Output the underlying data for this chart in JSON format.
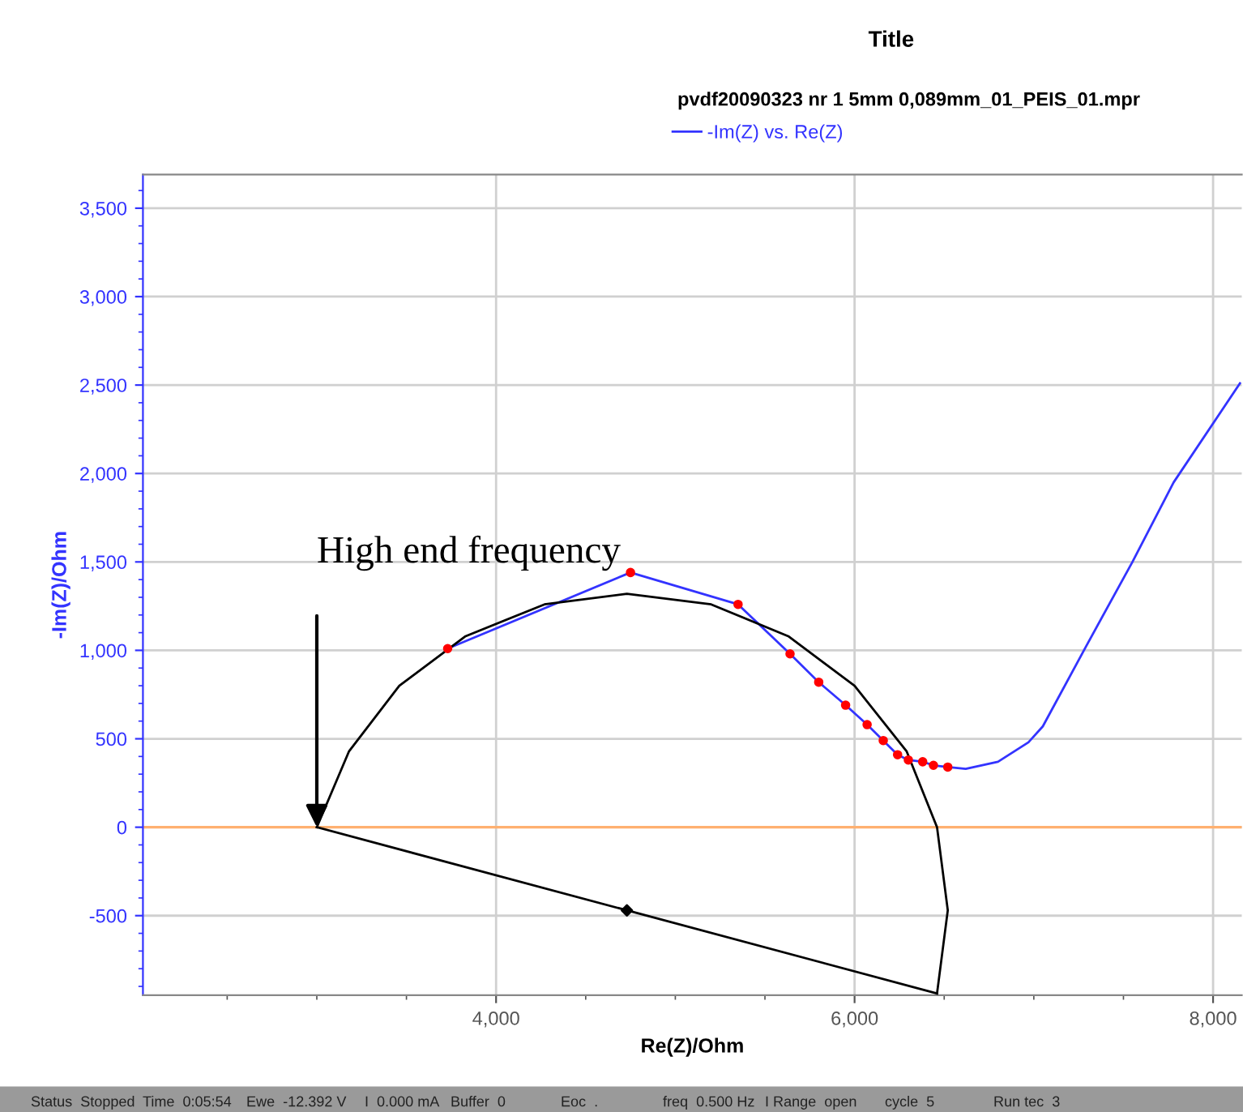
{
  "chart_data": {
    "type": "line",
    "title": "Title",
    "subtitle": "pvdf20090323 nr 1 5mm 0,089mm_01_PEIS_01.mpr",
    "xlabel": "Re(Z)/Ohm",
    "ylabel": "-Im(Z)/Ohm",
    "xlim": [
      2030,
      8160
    ],
    "ylim": [
      -950,
      3690
    ],
    "xticks": [
      {
        "value": 4000,
        "label": "4,000"
      },
      {
        "value": 6000,
        "label": "6,000"
      },
      {
        "value": 8000,
        "label": "8,000"
      }
    ],
    "yticks": [
      {
        "value": -500,
        "label": "-500"
      },
      0,
      {
        "value": 500,
        "label": "500"
      },
      {
        "value": 1000,
        "label": "1,000"
      },
      {
        "value": 1500,
        "label": "1,500"
      },
      {
        "value": 2000,
        "label": "2,000"
      },
      {
        "value": 2500,
        "label": "2,500"
      },
      {
        "value": 3000,
        "label": "3,000"
      },
      {
        "value": 3500,
        "label": "3,500"
      }
    ],
    "grid": true,
    "legend": "top",
    "series": [
      {
        "name": "-Im(Z) vs. Re(Z)",
        "color": "#3333ff",
        "marker": "none",
        "x": [
          3730,
          4750,
          5350,
          5640,
          5800,
          5950,
          6070,
          6160,
          6240,
          6300,
          6380,
          6440,
          6520,
          6620,
          6800,
          6970,
          7050,
          7290,
          7550,
          7780,
          8150
        ],
        "values": [
          1010,
          1440,
          1260,
          980,
          820,
          690,
          580,
          490,
          410,
          380,
          370,
          350,
          340,
          330,
          370,
          480,
          570,
          1020,
          1500,
          1950,
          2510
        ]
      },
      {
        "type": "scatter",
        "color": "#ff0000",
        "marker": "circle",
        "x": [
          3730,
          4750,
          5350,
          5640,
          5800,
          5950,
          6070,
          6160,
          6240,
          6300,
          6380,
          6440,
          6520
        ],
        "values": [
          1010,
          1440,
          1260,
          980,
          820,
          690,
          580,
          490,
          410,
          380,
          370,
          350,
          340
        ]
      },
      {
        "color": "#000000",
        "marker": "none",
        "x": [
          3000,
          3180,
          3460,
          3830,
          4270,
          4730,
          5200,
          5630,
          6000,
          6290,
          6460,
          6520,
          6460
        ],
        "values": [
          0,
          430,
          800,
          1080,
          1260,
          1320,
          1260,
          1080,
          800,
          430,
          0,
          -470,
          -940
        ]
      },
      {
        "color": "#000000",
        "marker": "none",
        "x": [
          3000,
          4730,
          6460
        ],
        "values": [
          0,
          -470,
          -940
        ]
      },
      {
        "type": "scatter",
        "color": "#000000",
        "marker": "diamond",
        "x": [
          4730
        ],
        "values": [
          -470
        ]
      }
    ],
    "ref_lines": [
      {
        "axis": "y",
        "value": 0,
        "color": "#ffb070"
      }
    ],
    "annotations": [
      {
        "text": "High end frequency",
        "x": 3000,
        "y": 0
      },
      "Status  Stopped",
      "Time  0:05:54",
      "Ewe  -12.392 V",
      "I  0.000 mA",
      "Buffer  0",
      "Eoc  .",
      "freq  0.500 Hz",
      "I Range  open",
      "cycle  5",
      "Run tec  3"
    ]
  }
}
